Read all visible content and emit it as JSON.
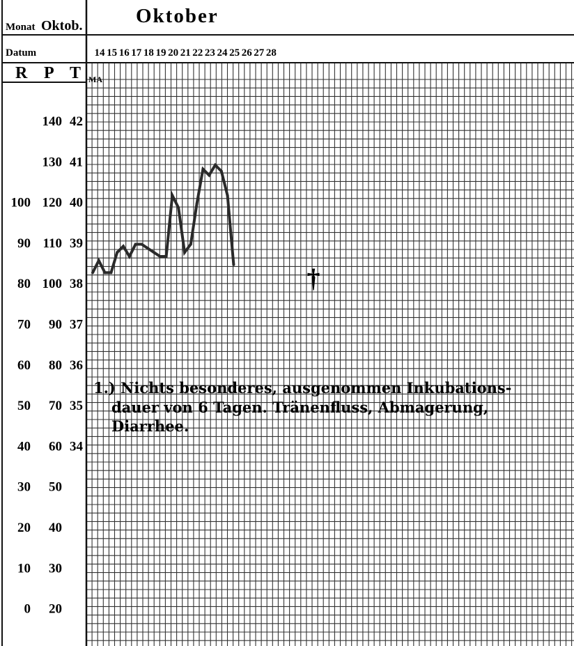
{
  "header": {
    "monat_label": "Monat",
    "monat_value": "Oktob.",
    "title": "Oktober",
    "datum_label": "Datum",
    "dates": [
      "14",
      "15",
      "16",
      "17",
      "18",
      "19",
      "20",
      "21",
      "22",
      "23",
      "24",
      "25",
      "26",
      "27",
      "28"
    ],
    "col_r": "R",
    "col_p": "P",
    "col_t": "T",
    "ma_label": "MA"
  },
  "scale_rows": [
    {
      "r": "",
      "p": "140",
      "t": "42"
    },
    {
      "r": "",
      "p": "130",
      "t": "41"
    },
    {
      "r": "100",
      "p": "120",
      "t": "40"
    },
    {
      "r": "90",
      "p": "110",
      "t": "39"
    },
    {
      "r": "80",
      "p": "100",
      "t": "38"
    },
    {
      "r": "70",
      "p": "90",
      "t": "37"
    },
    {
      "r": "60",
      "p": "80",
      "t": "36"
    },
    {
      "r": "50",
      "p": "70",
      "t": "35"
    },
    {
      "r": "40",
      "p": "60",
      "t": "34"
    },
    {
      "r": "30",
      "p": "50",
      "t": ""
    },
    {
      "r": "20",
      "p": "40",
      "t": ""
    },
    {
      "r": "10",
      "p": "30",
      "t": ""
    },
    {
      "r": "0",
      "p": "20",
      "t": ""
    }
  ],
  "death_marker": "†",
  "note": {
    "line1": "1.) Nichts besonderes, ausgenommen Inkubations-",
    "line2": "dauer von 6 Tagen. Tränenfluss, Abmagerung,",
    "line3": "Diarrhee."
  },
  "chart_data": {
    "type": "line",
    "title": "Oktober",
    "xlabel": "Datum",
    "ylabel": "T",
    "categories": [
      "14",
      "15",
      "16",
      "17",
      "18",
      "19",
      "20",
      "21",
      "22",
      "23",
      "24",
      "25",
      "26",
      "27",
      "28"
    ],
    "y_unit": "°C",
    "ylim": [
      34,
      42
    ],
    "series": [
      {
        "x": [
          14.0,
          14.5,
          15.0,
          15.5,
          16.0,
          16.5,
          17.0,
          17.5,
          18.0,
          18.5,
          19.0,
          19.5,
          20.0,
          20.5,
          21.0,
          21.5,
          22.0,
          22.5,
          23.0,
          23.5,
          24.0,
          24.5,
          25.0,
          25.5
        ],
        "values": [
          38.2,
          38.5,
          38.2,
          38.2,
          38.7,
          38.85,
          38.6,
          38.9,
          38.9,
          38.8,
          38.7,
          38.6,
          38.6,
          40.1,
          39.8,
          38.7,
          38.9,
          39.9,
          40.75,
          40.6,
          40.85,
          40.7,
          40.1,
          38.4
        ]
      }
    ],
    "markers": [
      {
        "x": 26,
        "symbol": "†"
      }
    ],
    "grid": true,
    "scales": {
      "R": [
        0,
        10,
        20,
        30,
        40,
        50,
        60,
        70,
        80,
        90,
        100
      ],
      "P": [
        20,
        30,
        40,
        50,
        60,
        70,
        80,
        90,
        100,
        110,
        120,
        130,
        140
      ],
      "T": [
        34,
        35,
        36,
        37,
        38,
        39,
        40,
        41,
        42
      ]
    }
  }
}
